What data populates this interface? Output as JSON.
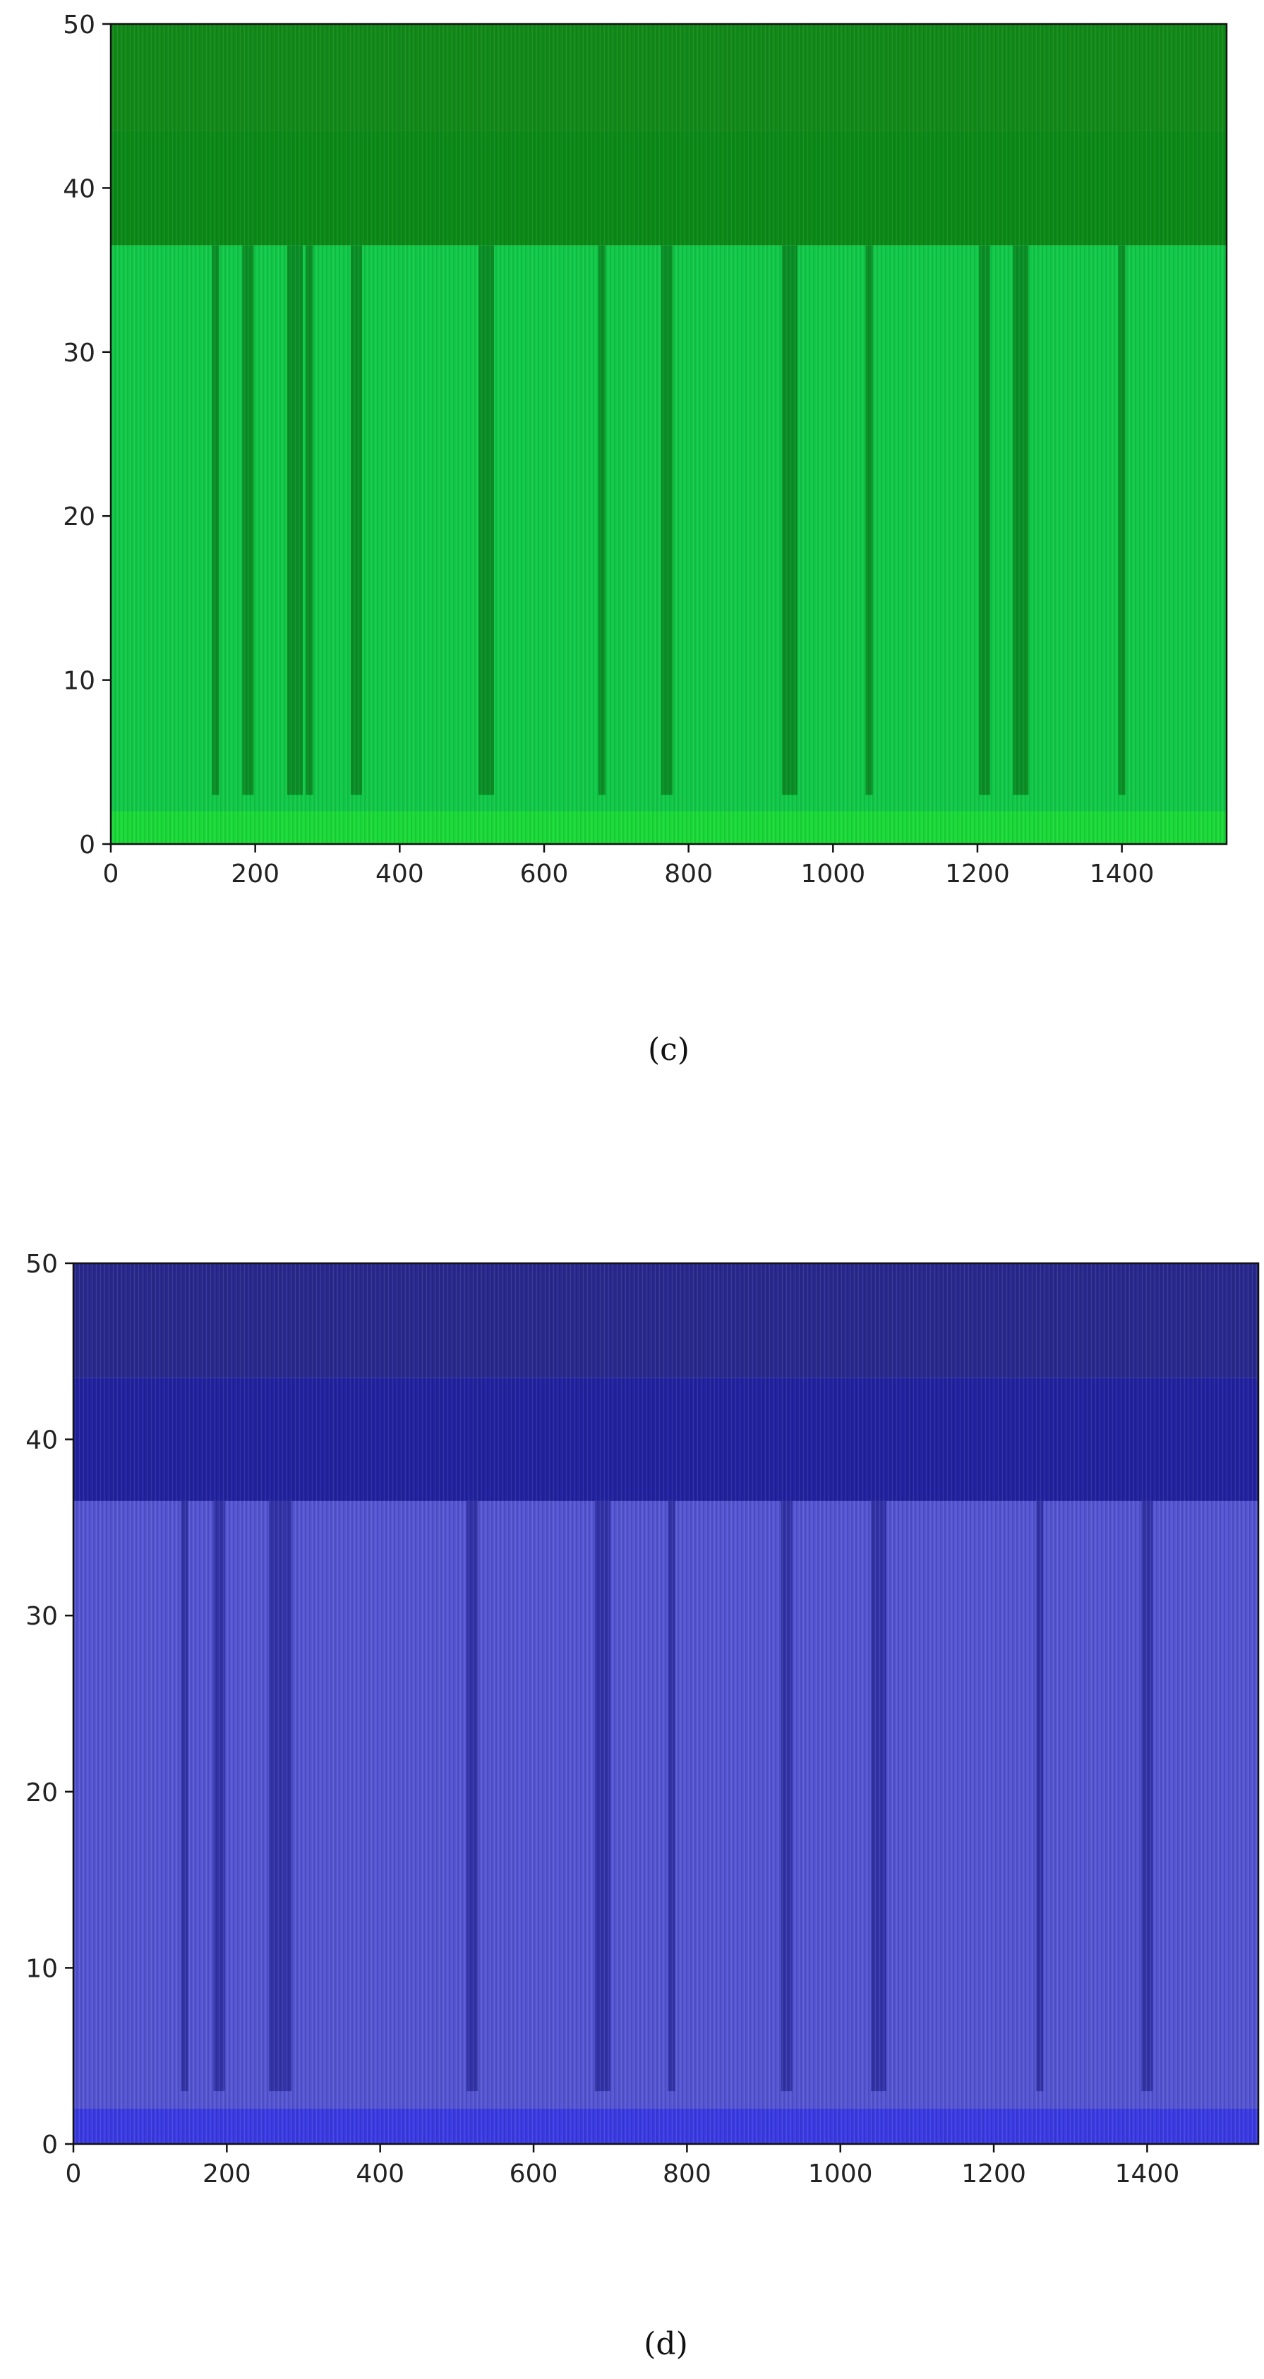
{
  "chart_data": [
    {
      "type": "heatmap",
      "caption": "(c)",
      "xlim": [
        0,
        1545
      ],
      "ylim": [
        0,
        50
      ],
      "x_ticks": [
        0,
        200,
        400,
        600,
        800,
        1000,
        1200,
        1400
      ],
      "y_ticks": [
        0,
        10,
        20,
        30,
        40,
        50
      ],
      "x_tick_labels": [
        "0",
        "200",
        "400",
        "600",
        "800",
        "1000",
        "1200",
        "1400"
      ],
      "y_tick_labels": [
        "0",
        "10",
        "20",
        "30",
        "40",
        "50"
      ],
      "grid": false,
      "colors": {
        "top_band": "#138a1a",
        "mid_band": "#0c8a18",
        "body": "#12c94a",
        "dark_streak": "#0a7a1c",
        "bright": "#22e630"
      },
      "bands": [
        {
          "y_from": 43.5,
          "y_to": 50,
          "level": "top_band"
        },
        {
          "y_from": 36.5,
          "y_to": 43.5,
          "level": "mid_band"
        },
        {
          "y_from": 0,
          "y_to": 36.5,
          "level": "body"
        }
      ],
      "dark_streaks_x": [
        145,
        190,
        255,
        275,
        340,
        520,
        680,
        770,
        940,
        1050,
        1210,
        1260,
        1400
      ]
    },
    {
      "type": "heatmap",
      "caption": "(d)",
      "xlim": [
        0,
        1545
      ],
      "ylim": [
        0,
        50
      ],
      "x_ticks": [
        0,
        200,
        400,
        600,
        800,
        1000,
        1200,
        1400
      ],
      "y_ticks": [
        0,
        10,
        20,
        30,
        40,
        50
      ],
      "x_tick_labels": [
        "0",
        "200",
        "400",
        "600",
        "800",
        "1000",
        "1200",
        "1400"
      ],
      "y_tick_labels": [
        "0",
        "10",
        "20",
        "30",
        "40",
        "50"
      ],
      "grid": false,
      "colors": {
        "top_band": "#2a2a8e",
        "mid_band": "#2323a0",
        "body": "#5757d4",
        "dark_streak": "#28289a",
        "bright": "#2a2aee"
      },
      "bands": [
        {
          "y_from": 43.5,
          "y_to": 50,
          "level": "top_band"
        },
        {
          "y_from": 36.5,
          "y_to": 43.5,
          "level": "mid_band"
        },
        {
          "y_from": 0,
          "y_to": 36.5,
          "level": "body"
        }
      ],
      "dark_streaks_x": [
        145,
        190,
        265,
        280,
        520,
        690,
        780,
        930,
        1050,
        1260,
        1400
      ]
    }
  ]
}
